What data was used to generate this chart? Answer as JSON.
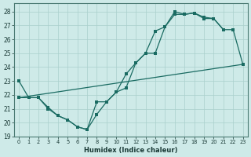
{
  "xlabel": "Humidex (Indice chaleur)",
  "background_color": "#ceeae8",
  "grid_color": "#aacfcc",
  "line_color": "#1a6b62",
  "xlim": [
    -0.5,
    23.5
  ],
  "ylim": [
    19,
    28.6
  ],
  "yticks": [
    19,
    20,
    21,
    22,
    23,
    24,
    25,
    26,
    27,
    28
  ],
  "xticks": [
    0,
    1,
    2,
    3,
    4,
    5,
    6,
    7,
    8,
    9,
    10,
    11,
    12,
    13,
    14,
    15,
    16,
    17,
    18,
    19,
    20,
    21,
    22,
    23
  ],
  "curve1_x": [
    0,
    1,
    2,
    3,
    4,
    5,
    6,
    7,
    8,
    9,
    10,
    11,
    12,
    13,
    14,
    15,
    16,
    17,
    18,
    19,
    20,
    21
  ],
  "curve1_y": [
    23.0,
    21.8,
    21.8,
    21.1,
    20.5,
    20.2,
    19.7,
    19.5,
    21.5,
    21.5,
    22.2,
    23.5,
    24.3,
    25.0,
    26.6,
    26.9,
    28.0,
    27.8,
    27.9,
    27.6,
    27.5,
    26.7
  ],
  "curve2_x": [
    0,
    1,
    2,
    3,
    4,
    5,
    6,
    7,
    8,
    9,
    10,
    11,
    12,
    13,
    14,
    15,
    16,
    17,
    18,
    19,
    20,
    21,
    22,
    23
  ],
  "curve2_y": [
    21.8,
    21.8,
    21.8,
    21.0,
    20.5,
    20.2,
    19.7,
    19.5,
    20.6,
    21.5,
    22.2,
    22.5,
    24.3,
    25.0,
    25.0,
    26.9,
    27.8,
    27.8,
    27.9,
    27.5,
    27.5,
    26.7,
    26.7,
    24.2
  ],
  "curve3_x": [
    0,
    23
  ],
  "curve3_y": [
    21.8,
    24.2
  ]
}
